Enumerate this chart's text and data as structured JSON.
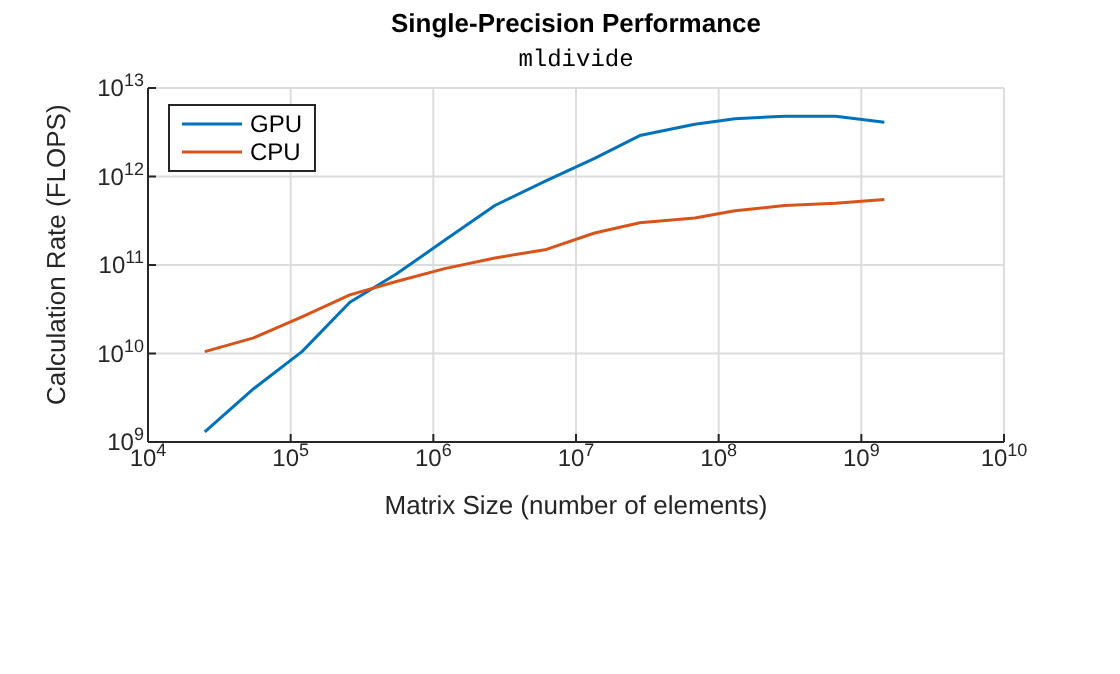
{
  "chart_data": {
    "type": "line",
    "title": "Single-Precision Performance",
    "subtitle": "mldivide",
    "xlabel": "Matrix Size (number of elements)",
    "ylabel": "Calculation Rate (FLOPS)",
    "x": [
      25000,
      55000,
      120000,
      260000,
      550000,
      1200000,
      2700000,
      6200000,
      13500000,
      28000000,
      68000000,
      130000000,
      290000000,
      660000000,
      1450000000
    ],
    "series": [
      {
        "name": "GPU",
        "color": "#0072bd",
        "values": [
          1300000000,
          4000000000,
          10500000000,
          38000000000,
          79000000000,
          190000000000,
          470000000000,
          900000000000,
          1600000000000,
          2900000000000,
          3900000000000,
          4500000000000,
          4800000000000,
          4800000000000,
          4100000000000
        ]
      },
      {
        "name": "CPU",
        "color": "#d95319",
        "values": [
          10500000000,
          15000000000,
          26000000000,
          46000000000,
          65000000000,
          91000000000,
          120000000000,
          150000000000,
          230000000000,
          300000000000,
          340000000000,
          410000000000,
          470000000000,
          500000000000,
          550000000000
        ]
      }
    ],
    "log": "xy",
    "xlim": [
      10000,
      10000000000
    ],
    "ylim": [
      1000000000,
      10000000000000
    ],
    "xticks": [
      {
        "value": 10000,
        "label": "10$^{4}$"
      },
      {
        "value": 100000,
        "label": "10$^{5}$"
      },
      {
        "value": 1000000,
        "label": "10$^{6}$"
      },
      {
        "value": 10000000,
        "label": "10$^{7}$"
      },
      {
        "value": 100000000,
        "label": "10$^{8}$"
      },
      {
        "value": 1000000000,
        "label": "10$^{9}$"
      },
      {
        "value": 10000000000,
        "label": "10$^{10}$"
      }
    ],
    "yticks": [
      {
        "value": 1000000000,
        "label": "10$^{9}$"
      },
      {
        "value": 10000000000,
        "label": "10$^{10}$"
      },
      {
        "value": 100000000000,
        "label": "10$^{11}$"
      },
      {
        "value": 1000000000000,
        "label": "10$^{12}$"
      },
      {
        "value": 10000000000000,
        "label": "10$^{13}$"
      }
    ],
    "grid": true,
    "legend": "top left",
    "marker": "none",
    "line_style": "solid"
  }
}
